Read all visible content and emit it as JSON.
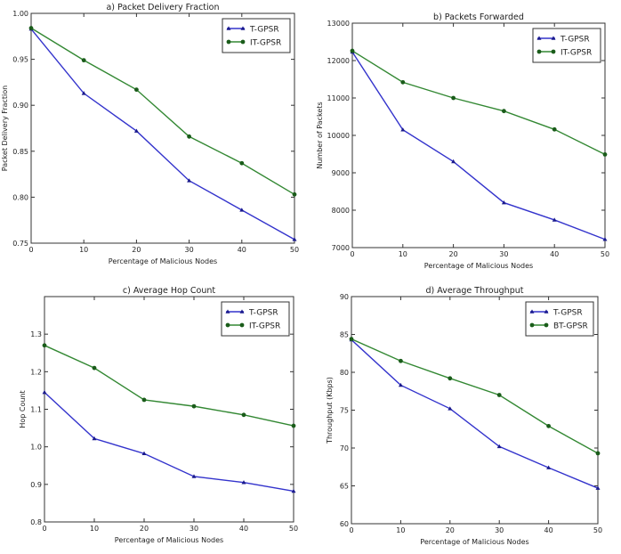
{
  "colors": {
    "series1": "#3333cc",
    "series2": "#338833",
    "marker2": "#1a5c1a",
    "marker1": "#1a1a8c"
  },
  "chart_data": [
    {
      "type": "line",
      "title": "a) Packet Delivery Fraction",
      "xlabel": "Percentage of Malicious Nodes",
      "ylabel": "Packet Delivery Fraction",
      "x": [
        0,
        10,
        20,
        30,
        40,
        50
      ],
      "xlim": [
        0,
        50
      ],
      "ylim": [
        0.75,
        1.0
      ],
      "xticks": [
        "0",
        "10",
        "20",
        "30",
        "40",
        "50"
      ],
      "yticks": [
        "0.75",
        "0.80",
        "0.85",
        "0.90",
        "0.95",
        "1.00"
      ],
      "legend": "top-right",
      "grid": false,
      "series": [
        {
          "name": "T-GPSR",
          "marker": "triangle",
          "values": [
            0.983,
            0.913,
            0.872,
            0.818,
            0.786,
            0.754
          ]
        },
        {
          "name": "IT-GPSR",
          "marker": "circle",
          "values": [
            0.984,
            0.949,
            0.917,
            0.866,
            0.837,
            0.803
          ]
        }
      ]
    },
    {
      "type": "line",
      "title": "b) Packets Forwarded",
      "xlabel": "Percentage of Malicious Nodes",
      "ylabel": "Number of Packets",
      "x": [
        0,
        10,
        20,
        30,
        40,
        50
      ],
      "xlim": [
        0,
        50
      ],
      "ylim": [
        7000,
        13000
      ],
      "xticks": [
        "0",
        "10",
        "20",
        "30",
        "40",
        "50"
      ],
      "yticks": [
        "7000",
        "8000",
        "9000",
        "10000",
        "11000",
        "12000",
        "13000"
      ],
      "legend": "top-right",
      "grid": false,
      "series": [
        {
          "name": "T-GPSR",
          "marker": "triangle",
          "values": [
            12230,
            10150,
            9300,
            8200,
            7740,
            7220
          ]
        },
        {
          "name": "IT-GPSR",
          "marker": "circle",
          "values": [
            12260,
            11420,
            11000,
            10650,
            10160,
            9490
          ]
        }
      ]
    },
    {
      "type": "line",
      "title": "c) Average Hop Count",
      "xlabel": "Percentage of Malicious Nodes",
      "ylabel": "Hop Count",
      "x": [
        0,
        10,
        20,
        30,
        40,
        50
      ],
      "xlim": [
        0,
        50
      ],
      "ylim": [
        0.8,
        1.4
      ],
      "xticks": [
        "0",
        "10",
        "20",
        "30",
        "40",
        "50"
      ],
      "yticks": [
        "0.8",
        "0.9",
        "1.0",
        "1.1",
        "1.2",
        "1.3"
      ],
      "legend": "top-right",
      "grid": false,
      "series": [
        {
          "name": "T-GPSR",
          "marker": "triangle",
          "values": [
            1.145,
            1.022,
            0.982,
            0.921,
            0.905,
            0.882
          ]
        },
        {
          "name": "IT-GPSR",
          "marker": "circle",
          "values": [
            1.27,
            1.21,
            1.125,
            1.108,
            1.085,
            1.056
          ]
        }
      ]
    },
    {
      "type": "line",
      "title": "d) Average Throughput",
      "xlabel": "Percentage of Malicious Nodes",
      "ylabel": "Throughput (Kbps)",
      "x": [
        0,
        10,
        20,
        30,
        40,
        50
      ],
      "xlim": [
        0,
        50
      ],
      "ylim": [
        60,
        90
      ],
      "xticks": [
        "0",
        "10",
        "20",
        "30",
        "40",
        "50"
      ],
      "yticks": [
        "60",
        "65",
        "70",
        "75",
        "80",
        "85",
        "90"
      ],
      "legend": "top-right",
      "grid": false,
      "series": [
        {
          "name": "T-GPSR",
          "marker": "triangle",
          "values": [
            84.3,
            78.3,
            75.2,
            70.2,
            67.4,
            64.7
          ]
        },
        {
          "name": "BT-GPSR",
          "marker": "circle",
          "values": [
            84.4,
            81.5,
            79.2,
            77.0,
            72.9,
            69.3
          ]
        }
      ]
    }
  ]
}
